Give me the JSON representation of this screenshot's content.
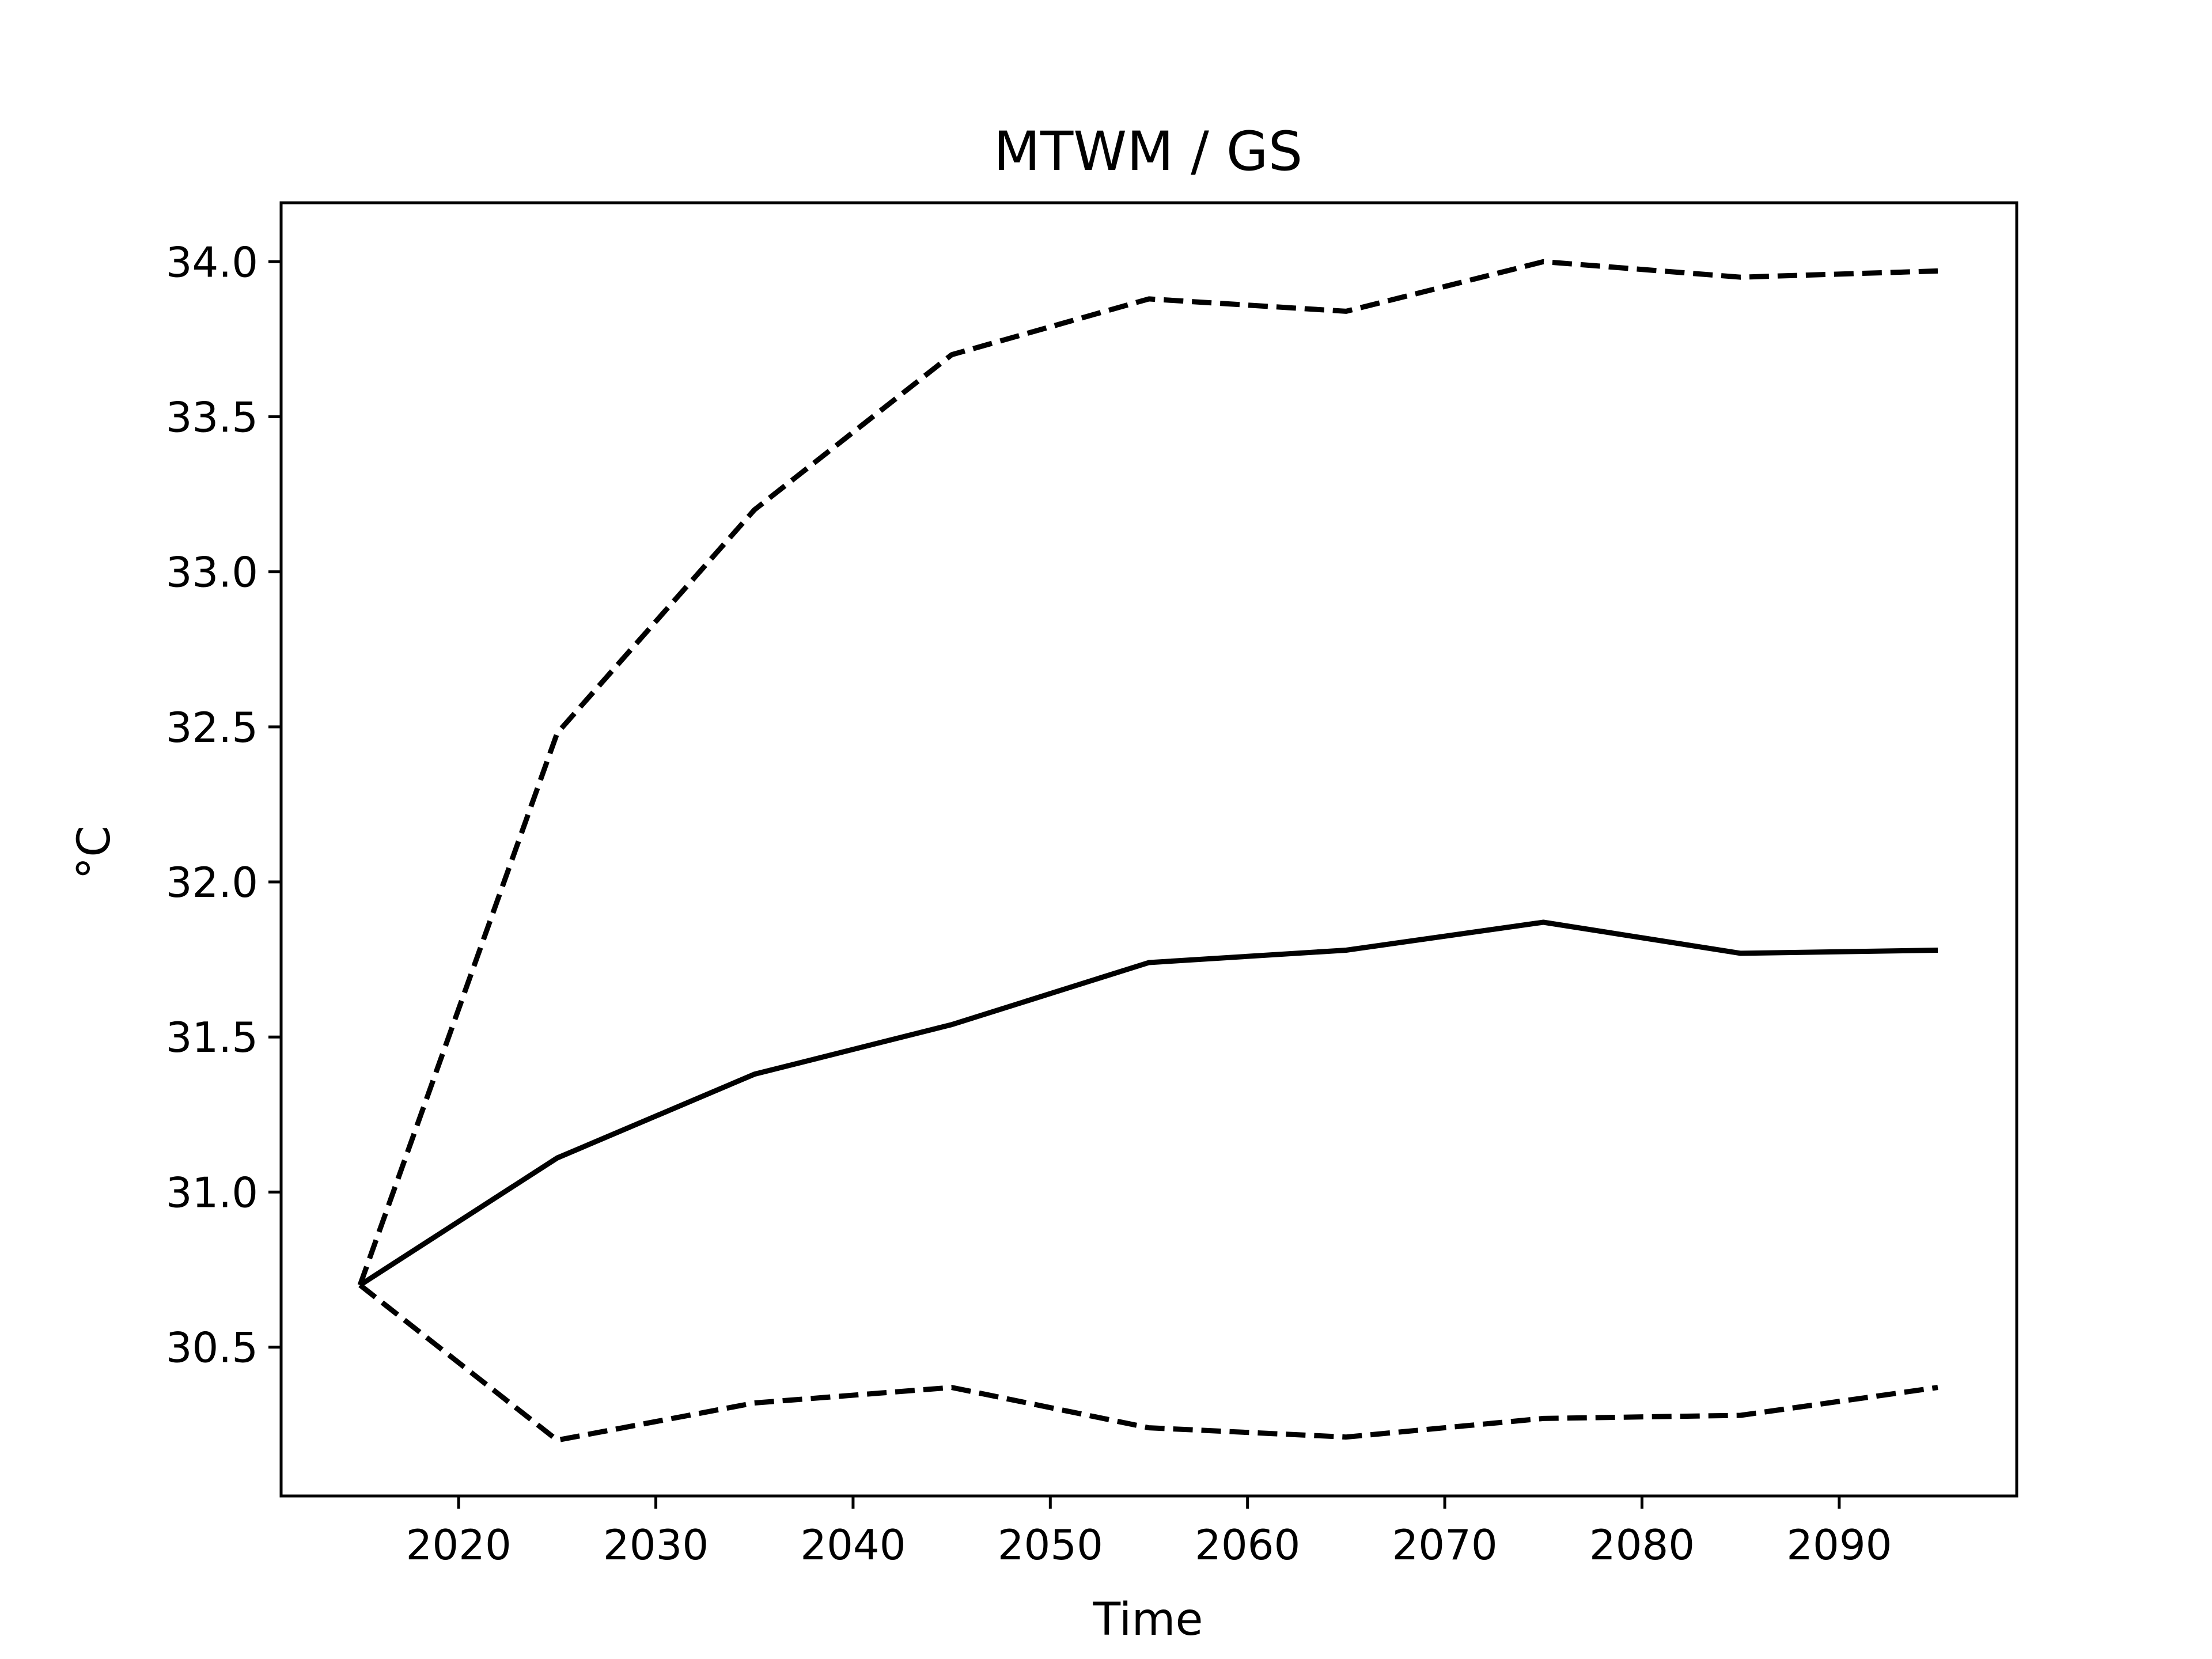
{
  "chart_data": {
    "type": "line",
    "title": "MTWM / GS",
    "xlabel": "Time",
    "ylabel": "°C",
    "x": [
      2015,
      2025,
      2035,
      2045,
      2055,
      2065,
      2075,
      2085,
      2095
    ],
    "series": [
      {
        "values": [
          30.7,
          30.2,
          30.32,
          30.37,
          30.24,
          30.21,
          30.27,
          30.28,
          30.37
        ],
        "style": "dashed",
        "color": "#000000"
      },
      {
        "values": [
          30.7,
          31.11,
          31.38,
          31.54,
          31.74,
          31.78,
          31.87,
          31.77,
          31.78
        ],
        "style": "solid",
        "color": "#000000"
      },
      {
        "values": [
          30.7,
          32.48,
          33.2,
          33.7,
          33.88,
          33.84,
          34.0,
          33.95,
          33.97
        ],
        "style": "dashed",
        "color": "#000000"
      }
    ],
    "xlim": [
      2011,
      2099
    ],
    "ylim": [
      30.02,
      34.19
    ],
    "xticks": [
      2020,
      2030,
      2040,
      2050,
      2060,
      2070,
      2080,
      2090
    ],
    "yticks": [
      30.5,
      31.0,
      31.5,
      32.0,
      32.5,
      33.0,
      33.5,
      34.0
    ],
    "grid": false,
    "legend": "none"
  }
}
